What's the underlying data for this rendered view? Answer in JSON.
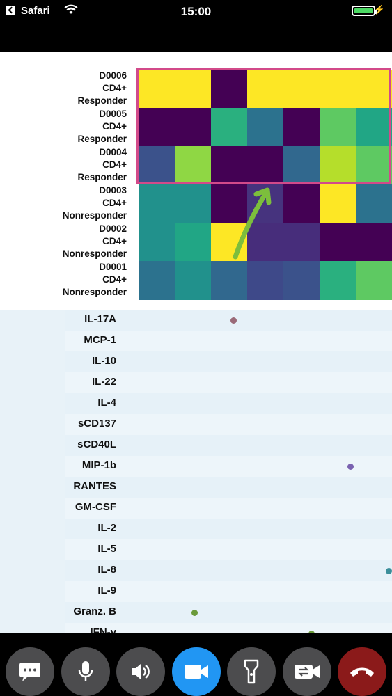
{
  "status_bar": {
    "back_app": "Safari",
    "time": "15:00",
    "battery_color": "#4cd964"
  },
  "heatmap": {
    "rows": [
      {
        "id": "D0006",
        "type": "CD4+",
        "group": "Responder"
      },
      {
        "id": "D0005",
        "type": "CD4+",
        "group": "Responder"
      },
      {
        "id": "D0004",
        "type": "CD4+",
        "group": "Responder"
      },
      {
        "id": "D0003",
        "type": "CD4+",
        "group": "Nonresponder"
      },
      {
        "id": "D0002",
        "type": "CD4+",
        "group": "Nonresponder"
      },
      {
        "id": "D0001",
        "type": "CD4+",
        "group": "Nonresponder"
      }
    ],
    "cells": [
      [
        "#fde725",
        "#fde725",
        "#440154",
        "#fde725",
        "#fde725",
        "#fde725",
        "#fde725"
      ],
      [
        "#440154",
        "#440154",
        "#2ab07f",
        "#2c728e",
        "#440154",
        "#5ec962",
        "#21a685"
      ],
      [
        "#3b528b",
        "#8fd744",
        "#440154",
        "#440154",
        "#31688e",
        "#b5de2b",
        "#5ec962"
      ],
      [
        "#21918c",
        "#21918c",
        "#440154",
        "#46337e",
        "#440154",
        "#fde725",
        "#2c728e"
      ],
      [
        "#21918c",
        "#21a685",
        "#fde725",
        "#472d7b",
        "#472d7b",
        "#440154",
        "#440154"
      ],
      [
        "#2c728e",
        "#21918c",
        "#31688e",
        "#3e4989",
        "#3b528b",
        "#2ab07f",
        "#5ec962"
      ]
    ],
    "highlight_color": "#d24a8a",
    "arrow_color": "#7cbe3c"
  },
  "dot_plot": {
    "rows": [
      {
        "label": "IL-17A",
        "dot": "#9a6a78",
        "x": 0.51
      },
      {
        "label": "MCP-1"
      },
      {
        "label": "IL-10"
      },
      {
        "label": "IL-22"
      },
      {
        "label": "IL-4"
      },
      {
        "label": "sCD137"
      },
      {
        "label": "sCD40L"
      },
      {
        "label": "MIP-1b",
        "dot": "#7a62b0",
        "x": 0.87
      },
      {
        "label": "RANTES"
      },
      {
        "label": "GM-CSF"
      },
      {
        "label": "IL-2"
      },
      {
        "label": "IL-5"
      },
      {
        "label": "IL-8",
        "dot": "#3b8e9a",
        "x": 0.99
      },
      {
        "label": "IL-9"
      },
      {
        "label": "Granz. B",
        "dot": "#6a9a3a",
        "x": 0.39
      },
      {
        "label": "IFN-γ",
        "dot": "#6a9a3a",
        "x": 0.75
      }
    ]
  },
  "call_controls": [
    {
      "name": "message-button",
      "icon": "chat-icon"
    },
    {
      "name": "mute-button",
      "icon": "microphone-icon"
    },
    {
      "name": "speaker-button",
      "icon": "speaker-icon"
    },
    {
      "name": "video-button",
      "icon": "video-camera-icon",
      "color": "#2196f3"
    },
    {
      "name": "flashlight-button",
      "icon": "flashlight-icon"
    },
    {
      "name": "switch-camera-button",
      "icon": "switch-camera-icon"
    },
    {
      "name": "end-call-button",
      "icon": "phone-hangup-icon",
      "color": "#8b1a1a"
    }
  ]
}
